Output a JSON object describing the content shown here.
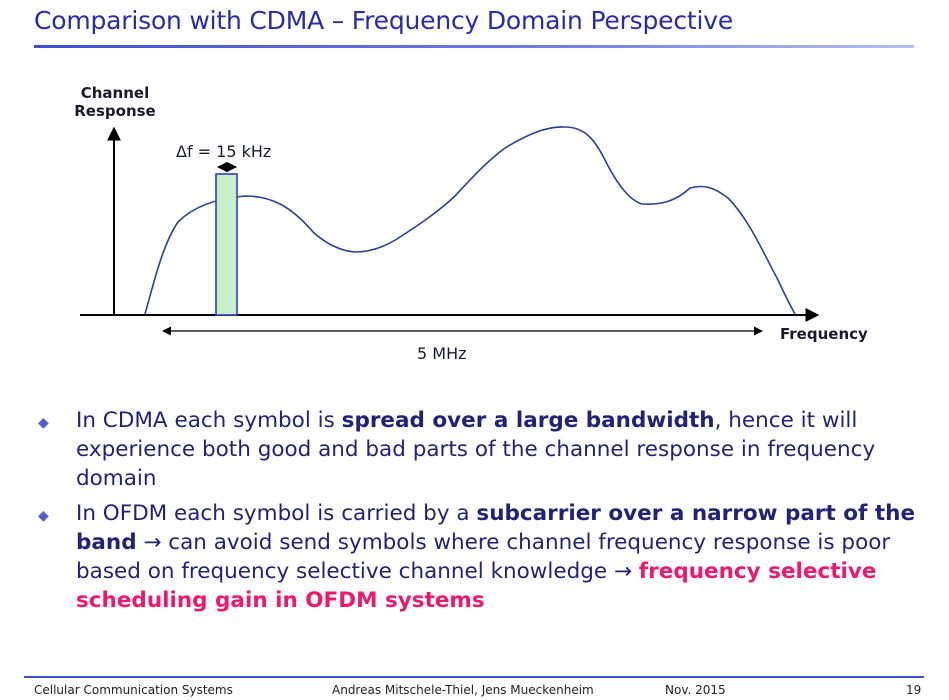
{
  "slide": {
    "title": "Comparison with CDMA – Frequency Domain Perspective"
  },
  "figure": {
    "y_axis_label_line1": "Channel",
    "y_axis_label_line2": "Response",
    "x_axis_label": "Frequency",
    "delta_f_label": "Δf = 15 kHz",
    "bandwidth_label": "5 MHz",
    "curve_color": "#2a3f9a",
    "subcarrier_fill": "#c8f0c8",
    "subcarrier_stroke": "#2a3fd0"
  },
  "bullets": [
    {
      "parts": [
        {
          "text": "In CDMA each symbol is ",
          "style": "normal"
        },
        {
          "text": "spread over a large bandwidth",
          "style": "bold"
        },
        {
          "text": ", hence it will experience both good and bad parts of the channel response in frequency domain",
          "style": "normal"
        }
      ]
    },
    {
      "parts": [
        {
          "text": "In OFDM each symbol is carried by a ",
          "style": "normal"
        },
        {
          "text": "subcarrier over a narrow part of the band",
          "style": "bold"
        },
        {
          "text": " → can avoid send symbols where channel frequency response is poor based on frequency selective channel knowledge → ",
          "style": "normal"
        },
        {
          "text": "frequency selective scheduling gain in OFDM systems",
          "style": "red"
        }
      ]
    }
  ],
  "footer": {
    "course": "Cellular Communication Systems",
    "authors": "Andreas Mitschele-Thiel, Jens Mueckenheim",
    "date": "Nov. 2015",
    "page": "19"
  }
}
